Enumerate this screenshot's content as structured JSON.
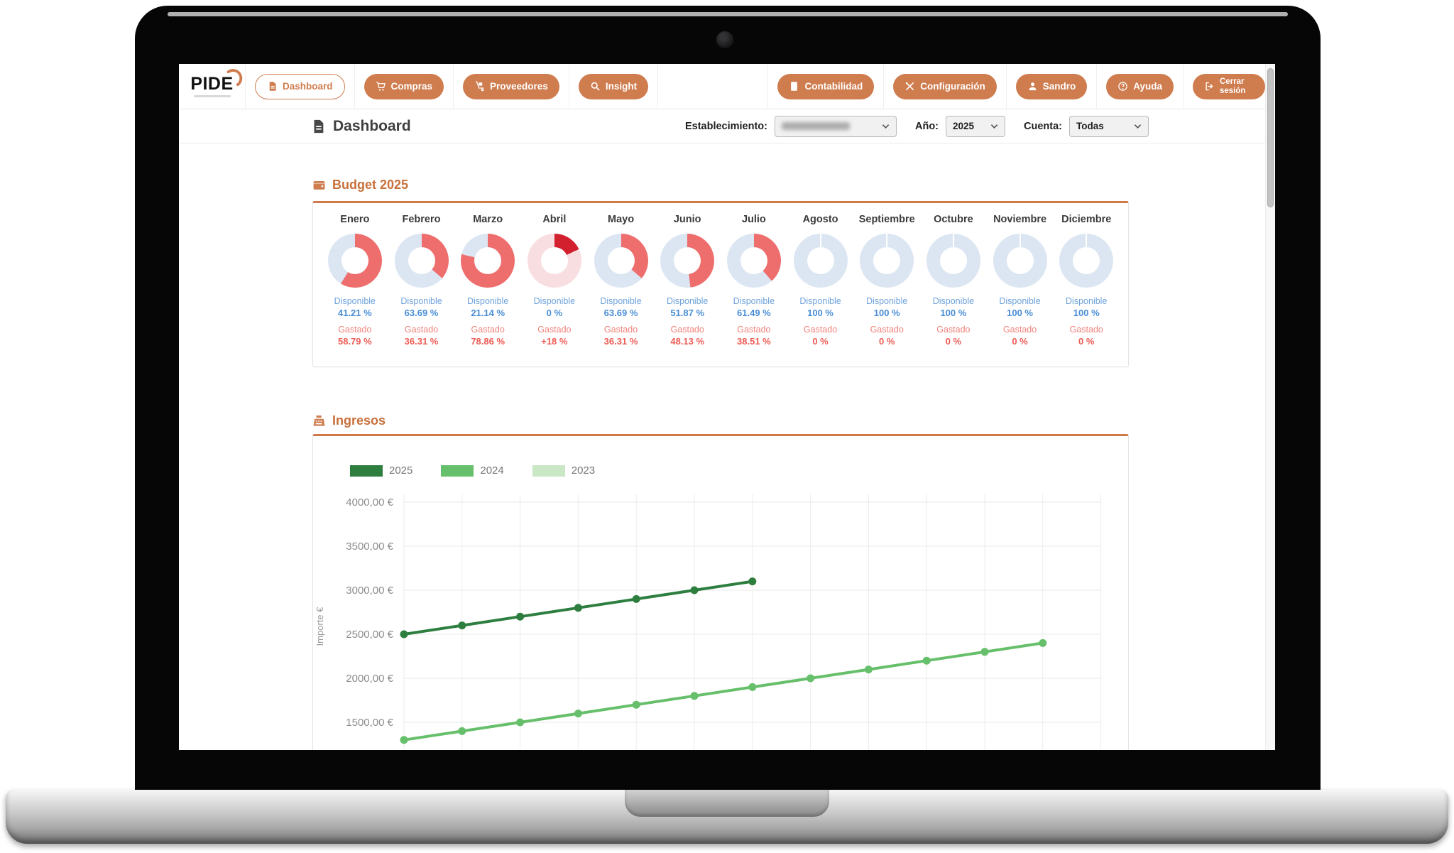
{
  "navbar": {
    "logo_text": "PIDE",
    "left_items": [
      {
        "id": "dashboard",
        "label": "Dashboard",
        "icon": "document-icon",
        "active": true
      },
      {
        "id": "compras",
        "label": "Compras",
        "icon": "cart-icon",
        "active": false
      },
      {
        "id": "proveedores",
        "label": "Proveedores",
        "icon": "handtruck-icon",
        "active": false
      },
      {
        "id": "insight",
        "label": "Insight",
        "icon": "search-icon",
        "active": false
      }
    ],
    "right_items": [
      {
        "id": "contabilidad",
        "label": "Contabilidad",
        "icon": "calculator-icon",
        "active": false
      },
      {
        "id": "configuracion",
        "label": "Configuración",
        "icon": "tools-icon",
        "active": false
      },
      {
        "id": "sandro",
        "label": "Sandro",
        "icon": "user-icon",
        "active": false
      },
      {
        "id": "ayuda",
        "label": "Ayuda",
        "icon": "help-icon",
        "active": false
      },
      {
        "id": "cerrar-sesion",
        "label": "Cerrar sesión",
        "icon": "logout-icon",
        "active": false
      }
    ]
  },
  "header": {
    "title": "Dashboard",
    "filters": [
      {
        "id": "establecimiento",
        "label": "Establecimiento:",
        "value": "",
        "value_hidden": true
      },
      {
        "id": "ano",
        "label": "Año:",
        "value": "2025",
        "value_hidden": false
      },
      {
        "id": "cuenta",
        "label": "Cuenta:",
        "value": "Todas",
        "value_hidden": false
      }
    ]
  },
  "budget": {
    "title": "Budget 2025",
    "disponible_label": "Disponible",
    "gastado_label": "Gastado",
    "colors": {
      "available": "#dce6f2",
      "spent": "#ee6e6e",
      "over_available": "#f8dee0",
      "over_spent": "#d3202f"
    },
    "months": [
      {
        "name": "Enero",
        "disponible": "41.21 %",
        "gastado": "58.79 %",
        "spent_pct": 58.79,
        "overbudget": false
      },
      {
        "name": "Febrero",
        "disponible": "63.69 %",
        "gastado": "36.31 %",
        "spent_pct": 36.31,
        "overbudget": false
      },
      {
        "name": "Marzo",
        "disponible": "21.14 %",
        "gastado": "78.86 %",
        "spent_pct": 78.86,
        "overbudget": false
      },
      {
        "name": "Abril",
        "disponible": "0 %",
        "gastado": "+18 %",
        "spent_pct": 18,
        "overbudget": true
      },
      {
        "name": "Mayo",
        "disponible": "63.69 %",
        "gastado": "36.31 %",
        "spent_pct": 36.31,
        "overbudget": false
      },
      {
        "name": "Junio",
        "disponible": "51.87 %",
        "gastado": "48.13 %",
        "spent_pct": 48.13,
        "overbudget": false
      },
      {
        "name": "Julio",
        "disponible": "61.49 %",
        "gastado": "38.51 %",
        "spent_pct": 38.51,
        "overbudget": false
      },
      {
        "name": "Agosto",
        "disponible": "100 %",
        "gastado": "0 %",
        "spent_pct": 0,
        "overbudget": false
      },
      {
        "name": "Septiembre",
        "disponible": "100 %",
        "gastado": "0 %",
        "spent_pct": 0,
        "overbudget": false
      },
      {
        "name": "Octubre",
        "disponible": "100 %",
        "gastado": "0 %",
        "spent_pct": 0,
        "overbudget": false
      },
      {
        "name": "Noviembre",
        "disponible": "100 %",
        "gastado": "0 %",
        "spent_pct": 0,
        "overbudget": false
      },
      {
        "name": "Diciembre",
        "disponible": "100 %",
        "gastado": "0 %",
        "spent_pct": 0,
        "overbudget": false
      }
    ]
  },
  "chart_data": {
    "type": "line",
    "title": "Ingresos",
    "ylabel": "Importe €",
    "x_unit": "month",
    "x": [
      1,
      2,
      3,
      4,
      5,
      6,
      7,
      8,
      9,
      10,
      11,
      12
    ],
    "series": [
      {
        "name": "2025",
        "color": "#2d7e3f",
        "values": [
          2500,
          2600,
          2700,
          2800,
          2900,
          3000,
          3100
        ]
      },
      {
        "name": "2024",
        "color": "#66bf6a",
        "values": [
          1300,
          1400,
          1500,
          1600,
          1700,
          1800,
          1900,
          2000,
          2100,
          2200,
          2300,
          2400
        ]
      },
      {
        "name": "2023",
        "color": "#c9e7c5",
        "values": []
      }
    ],
    "yticks": [
      "4000,00 €",
      "3500,00 €",
      "3000,00 €",
      "2500,00 €",
      "2000,00 €",
      "1500,00 €"
    ],
    "ytick_values": [
      4000,
      3500,
      3000,
      2500,
      2000,
      1500
    ],
    "ylim": [
      1250,
      4100
    ],
    "grid": true,
    "legend_position": "top-left"
  }
}
